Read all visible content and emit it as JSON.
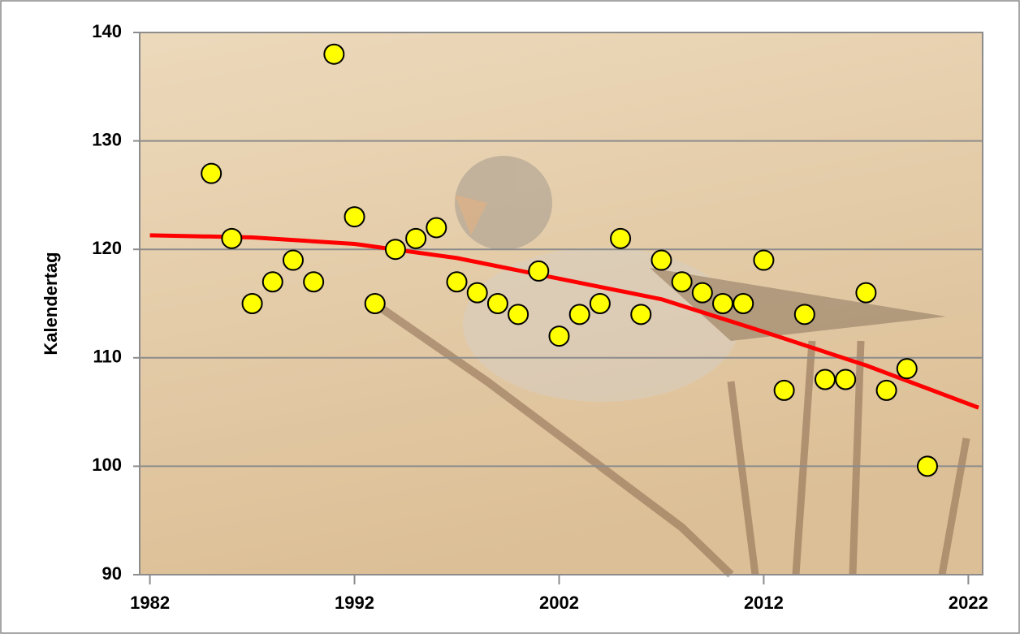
{
  "chart_data": {
    "type": "scatter",
    "y_label": "Kalendertag",
    "xlim": [
      1981.5,
      2022.7
    ],
    "xticks": [
      1982,
      1992,
      2002,
      2012,
      2022
    ],
    "ylim": [
      90,
      140
    ],
    "yticks": [
      90,
      100,
      110,
      120,
      130,
      140
    ],
    "grid": true,
    "series": [
      {
        "style": "marker",
        "color": "#ffff00",
        "x": [
          1985,
          1986,
          1987,
          1988,
          1989,
          1990,
          1991,
          1992,
          1993,
          1994,
          1995,
          1996,
          1997,
          1998,
          1999,
          2000,
          2001,
          2002,
          2003,
          2004,
          2005,
          2006,
          2007,
          2008,
          2009,
          2010,
          2011,
          2012,
          2013,
          2014,
          2015,
          2016,
          2017,
          2018,
          2019,
          2020
        ],
        "values": [
          127,
          121,
          115,
          117,
          119,
          117,
          138,
          123,
          115,
          120,
          121,
          122,
          117,
          116,
          115,
          114,
          118,
          112,
          114,
          115,
          121,
          114,
          119,
          117,
          116,
          115,
          115,
          119,
          107,
          114,
          108,
          108,
          116,
          107,
          109,
          100
        ]
      },
      {
        "style": "line",
        "color": "#ff0000",
        "x": [
          1982,
          1987,
          1992,
          1997,
          2002,
          2007,
          2012,
          2017,
          2022.5
        ],
        "values": [
          121.3,
          121.1,
          120.5,
          119.2,
          117.3,
          115.4,
          112.4,
          109.3,
          105.4
        ]
      }
    ]
  }
}
